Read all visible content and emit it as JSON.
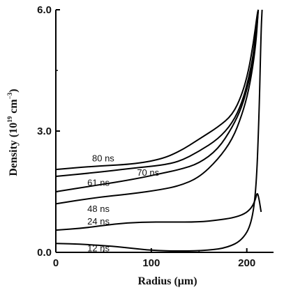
{
  "chart_data": {
    "type": "line",
    "xlabel": "Radius (μm)",
    "ylabel": {
      "prefix": "Density (10",
      "exp1": "19",
      "mid": " cm",
      "exp2": "−3",
      "suffix": ")"
    },
    "xlim": [
      0,
      228
    ],
    "ylim": [
      0,
      6.0
    ],
    "x_ticks": [
      0,
      100,
      200
    ],
    "x_tick_labels": [
      "0",
      "100",
      "200"
    ],
    "y_ticks": [
      0,
      3,
      6
    ],
    "y_tick_labels": [
      "0.0",
      "3.0",
      "6.0"
    ],
    "grid": false,
    "series": [
      {
        "name": "80 ns",
        "points": [
          [
            0,
            2.05
          ],
          [
            40,
            2.13
          ],
          [
            80,
            2.18
          ],
          [
            110,
            2.3
          ],
          [
            130,
            2.5
          ],
          [
            150,
            2.8
          ],
          [
            170,
            3.1
          ],
          [
            185,
            3.4
          ],
          [
            195,
            3.9
          ],
          [
            202,
            4.5
          ],
          [
            207,
            5.2
          ],
          [
            211,
            5.9
          ],
          [
            212,
            6.0
          ]
        ]
      },
      {
        "name": "70 ns",
        "points": [
          [
            0,
            1.88
          ],
          [
            40,
            1.97
          ],
          [
            80,
            2.08
          ],
          [
            110,
            2.15
          ],
          [
            130,
            2.25
          ],
          [
            150,
            2.5
          ],
          [
            170,
            2.8
          ],
          [
            185,
            3.2
          ],
          [
            195,
            3.7
          ],
          [
            202,
            4.3
          ],
          [
            207,
            4.9
          ],
          [
            210,
            5.6
          ],
          [
            212,
            6.0
          ]
        ]
      },
      {
        "name": "61 ns",
        "points": [
          [
            0,
            1.5
          ],
          [
            40,
            1.65
          ],
          [
            80,
            1.8
          ],
          [
            110,
            1.95
          ],
          [
            130,
            2.05
          ],
          [
            150,
            2.2
          ],
          [
            170,
            2.55
          ],
          [
            185,
            3.1
          ],
          [
            195,
            3.6
          ],
          [
            202,
            4.2
          ],
          [
            207,
            4.8
          ],
          [
            210,
            5.4
          ],
          [
            212,
            6.0
          ]
        ]
      },
      {
        "name": "48 ns",
        "points": [
          [
            0,
            1.2
          ],
          [
            40,
            1.35
          ],
          [
            80,
            1.45
          ],
          [
            110,
            1.55
          ],
          [
            130,
            1.65
          ],
          [
            150,
            1.85
          ],
          [
            170,
            2.3
          ],
          [
            185,
            2.8
          ],
          [
            195,
            3.4
          ],
          [
            202,
            4.0
          ],
          [
            207,
            4.7
          ],
          [
            210,
            5.3
          ],
          [
            212,
            6.0
          ]
        ]
      },
      {
        "name": "24 ns",
        "points": [
          [
            0,
            0.55
          ],
          [
            30,
            0.6
          ],
          [
            60,
            0.7
          ],
          [
            90,
            0.75
          ],
          [
            120,
            0.75
          ],
          [
            150,
            0.75
          ],
          [
            170,
            0.8
          ],
          [
            185,
            0.85
          ],
          [
            198,
            0.95
          ],
          [
            205,
            1.1
          ],
          [
            209,
            1.3
          ],
          [
            211,
            1.5
          ],
          [
            213,
            1.3
          ],
          [
            215,
            1.0
          ]
        ]
      },
      {
        "name": "12 ns",
        "points": [
          [
            0,
            0.22
          ],
          [
            30,
            0.2
          ],
          [
            60,
            0.15
          ],
          [
            80,
            0.1
          ],
          [
            100,
            0.05
          ],
          [
            130,
            0.03
          ],
          [
            160,
            0.05
          ],
          [
            180,
            0.12
          ],
          [
            195,
            0.3
          ],
          [
            205,
            0.7
          ],
          [
            210,
            1.6
          ],
          [
            213,
            3.5
          ],
          [
            215,
            5.5
          ],
          [
            216,
            6.0
          ]
        ]
      }
    ],
    "series_label_positions": [
      {
        "series": "80 ns",
        "x": 38,
        "y": 2.25
      },
      {
        "series": "70 ns",
        "x": 85,
        "y": 1.9
      },
      {
        "series": "61 ns",
        "x": 33,
        "y": 1.65
      },
      {
        "series": "48 ns",
        "x": 33,
        "y": 1.0
      },
      {
        "series": "24 ns",
        "x": 33,
        "y": 0.69
      },
      {
        "series": "12 ns",
        "x": 33,
        "y": 0.03
      }
    ]
  }
}
